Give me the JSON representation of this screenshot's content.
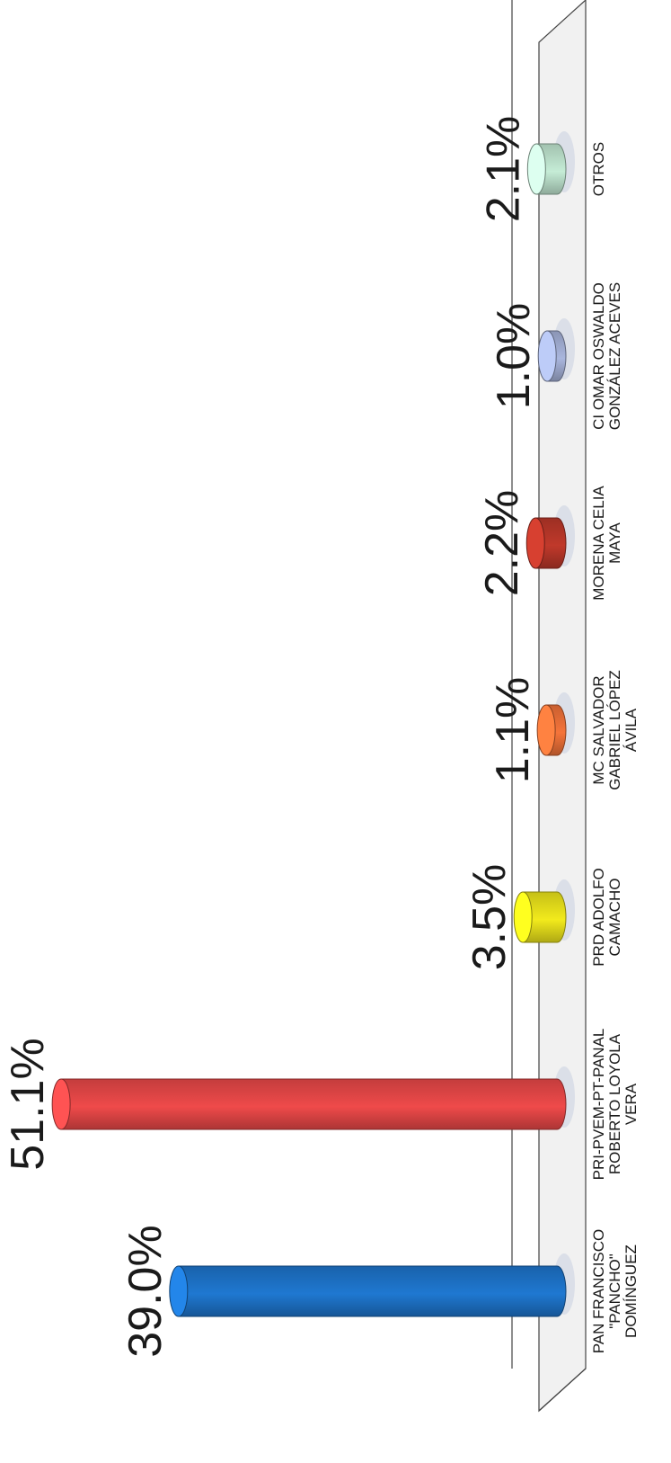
{
  "chart_data": {
    "type": "bar",
    "title": "",
    "xlabel": "",
    "ylabel": "",
    "orientation": "rotated-90",
    "ylim": [
      0,
      55
    ],
    "categories": [
      "PAN FRANCISCO \"PANCHO\" DOMÍNGUEZ",
      "PRI-PVEM-PT-PANAL ROBERTO LOYOLA VERA",
      "PRD ADOLFO CAMACHO",
      "MC SALVADOR GABRIEL LÓPEZ ÁVILA",
      "MORENA CELIA MAYA",
      "CI OMAR OSWALDO GONZÁLEZ ACEVES",
      "OTROS"
    ],
    "label_lines": [
      [
        "PAN FRANCISCO",
        "\"PANCHO\"",
        "DOMÍNGUEZ"
      ],
      [
        "PRI-PVEM-PT-PANAL",
        "ROBERTO LOYOLA",
        "VERA"
      ],
      [
        "PRD ADOLFO",
        "CAMACHO"
      ],
      [
        "MC SALVADOR",
        "GABRIEL LÓPEZ",
        "ÁVILA"
      ],
      [
        "MORENA CELIA",
        "MAYA"
      ],
      [
        "CI OMAR OSWALDO",
        "GONZÁLEZ ACEVES"
      ],
      [
        "OTROS"
      ]
    ],
    "values": [
      39.0,
      51.1,
      3.5,
      1.1,
      2.2,
      1.0,
      2.1
    ],
    "value_labels": [
      "39.0%",
      "51.1%",
      "3.5%",
      "1.1%",
      "2.2%",
      "1.0%",
      "2.1%"
    ],
    "colors": [
      "#1f78d1",
      "#ef4a4a",
      "#f2ea1c",
      "#f5743a",
      "#c0392b",
      "#a9b6dd",
      "#c5ecd6"
    ],
    "grid": false,
    "legend": "none"
  }
}
